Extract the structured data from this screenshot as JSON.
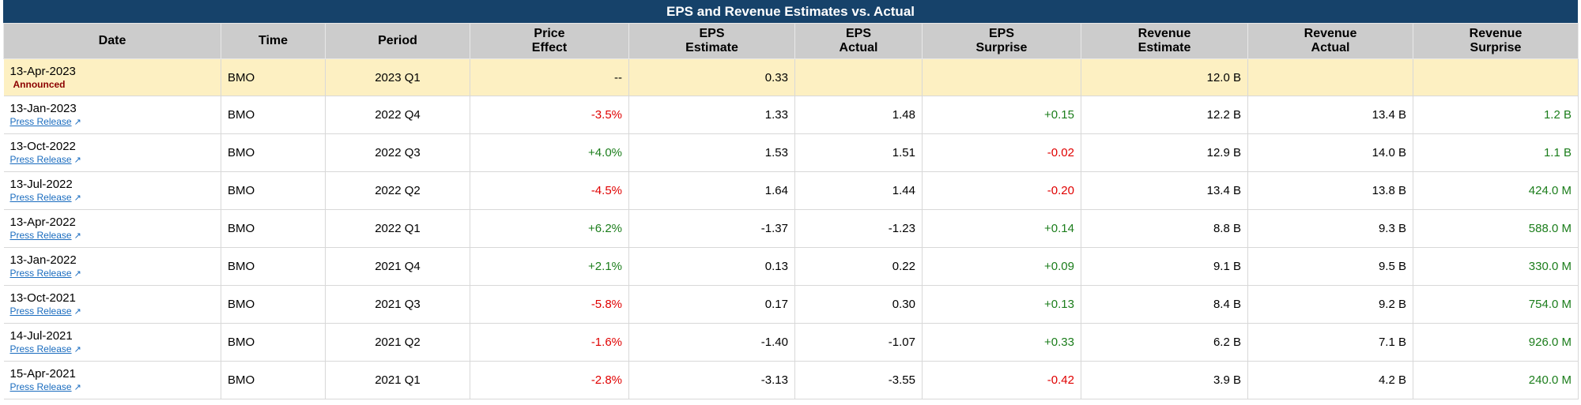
{
  "title": "EPS and Revenue Estimates vs. Actual",
  "headers": {
    "date": "Date",
    "time": "Time",
    "period": "Period",
    "price_effect_1": "Price",
    "price_effect_2": "Effect",
    "eps_est_1": "EPS",
    "eps_est_2": "Estimate",
    "eps_act_1": "EPS",
    "eps_act_2": "Actual",
    "eps_sur_1": "EPS",
    "eps_sur_2": "Surprise",
    "rev_est_1": "Revenue",
    "rev_est_2": "Estimate",
    "rev_act_1": "Revenue",
    "rev_act_2": "Actual",
    "rev_sur_1": "Revenue",
    "rev_sur_2": "Surprise"
  },
  "upcoming": {
    "date": "13-Apr-2023",
    "status": "Announced",
    "time": "BMO",
    "period": "2023 Q1",
    "price_effect": "--",
    "eps_estimate": "0.33",
    "eps_actual": "",
    "eps_surprise": "",
    "revenue_estimate": "12.0 B",
    "revenue_actual": "",
    "revenue_surprise": ""
  },
  "press_label": "Press Release",
  "colors": {
    "negative": "#e00000",
    "positive": "#1b7d1b",
    "header_bg": "#16426a",
    "highlight": "#fdf0c2"
  },
  "rows": [
    {
      "date": "13-Jan-2023",
      "time": "BMO",
      "period": "2022 Q4",
      "price_effect": "-3.5%",
      "eps_estimate": "1.33",
      "eps_actual": "1.48",
      "eps_surprise": "+0.15",
      "revenue_estimate": "12.2 B",
      "revenue_actual": "13.4 B",
      "revenue_surprise": "1.2 B"
    },
    {
      "date": "13-Oct-2022",
      "time": "BMO",
      "period": "2022 Q3",
      "price_effect": "+4.0%",
      "eps_estimate": "1.53",
      "eps_actual": "1.51",
      "eps_surprise": "-0.02",
      "revenue_estimate": "12.9 B",
      "revenue_actual": "14.0 B",
      "revenue_surprise": "1.1 B"
    },
    {
      "date": "13-Jul-2022",
      "time": "BMO",
      "period": "2022 Q2",
      "price_effect": "-4.5%",
      "eps_estimate": "1.64",
      "eps_actual": "1.44",
      "eps_surprise": "-0.20",
      "revenue_estimate": "13.4 B",
      "revenue_actual": "13.8 B",
      "revenue_surprise": "424.0 M"
    },
    {
      "date": "13-Apr-2022",
      "time": "BMO",
      "period": "2022 Q1",
      "price_effect": "+6.2%",
      "eps_estimate": "-1.37",
      "eps_actual": "-1.23",
      "eps_surprise": "+0.14",
      "revenue_estimate": "8.8 B",
      "revenue_actual": "9.3 B",
      "revenue_surprise": "588.0 M"
    },
    {
      "date": "13-Jan-2022",
      "time": "BMO",
      "period": "2021 Q4",
      "price_effect": "+2.1%",
      "eps_estimate": "0.13",
      "eps_actual": "0.22",
      "eps_surprise": "+0.09",
      "revenue_estimate": "9.1 B",
      "revenue_actual": "9.5 B",
      "revenue_surprise": "330.0 M"
    },
    {
      "date": "13-Oct-2021",
      "time": "BMO",
      "period": "2021 Q3",
      "price_effect": "-5.8%",
      "eps_estimate": "0.17",
      "eps_actual": "0.30",
      "eps_surprise": "+0.13",
      "revenue_estimate": "8.4 B",
      "revenue_actual": "9.2 B",
      "revenue_surprise": "754.0 M"
    },
    {
      "date": "14-Jul-2021",
      "time": "BMO",
      "period": "2021 Q2",
      "price_effect": "-1.6%",
      "eps_estimate": "-1.40",
      "eps_actual": "-1.07",
      "eps_surprise": "+0.33",
      "revenue_estimate": "6.2 B",
      "revenue_actual": "7.1 B",
      "revenue_surprise": "926.0 M"
    },
    {
      "date": "15-Apr-2021",
      "time": "BMO",
      "period": "2021 Q1",
      "price_effect": "-2.8%",
      "eps_estimate": "-3.13",
      "eps_actual": "-3.55",
      "eps_surprise": "-0.42",
      "revenue_estimate": "3.9 B",
      "revenue_actual": "4.2 B",
      "revenue_surprise": "240.0 M"
    }
  ]
}
